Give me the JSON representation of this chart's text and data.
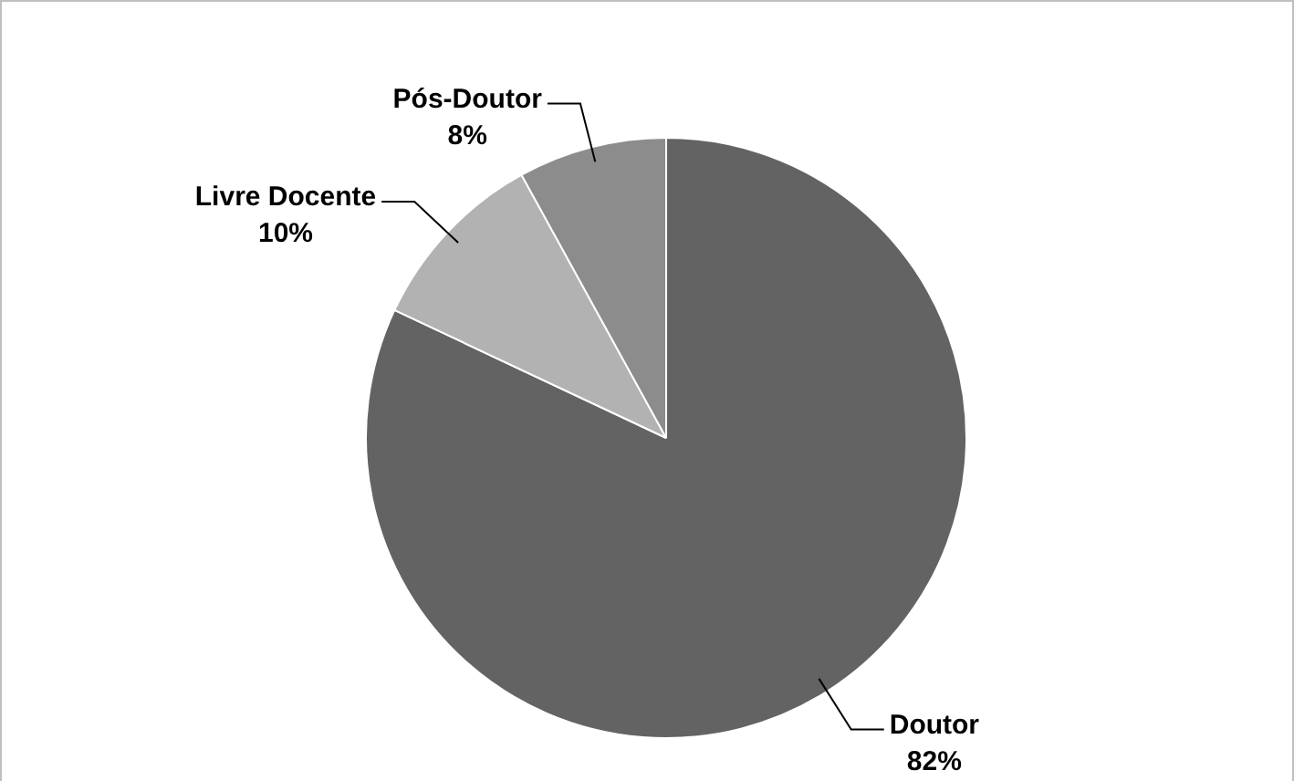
{
  "chart_data": {
    "type": "pie",
    "categories": [
      "Doutor",
      "Livre Docente",
      "Pós-Doutor"
    ],
    "values": [
      82,
      10,
      8
    ],
    "colors": [
      "#636363",
      "#b2b2b2",
      "#8c8c8c"
    ],
    "value_labels": [
      "82%",
      "10%",
      "8%"
    ],
    "legend": false
  }
}
